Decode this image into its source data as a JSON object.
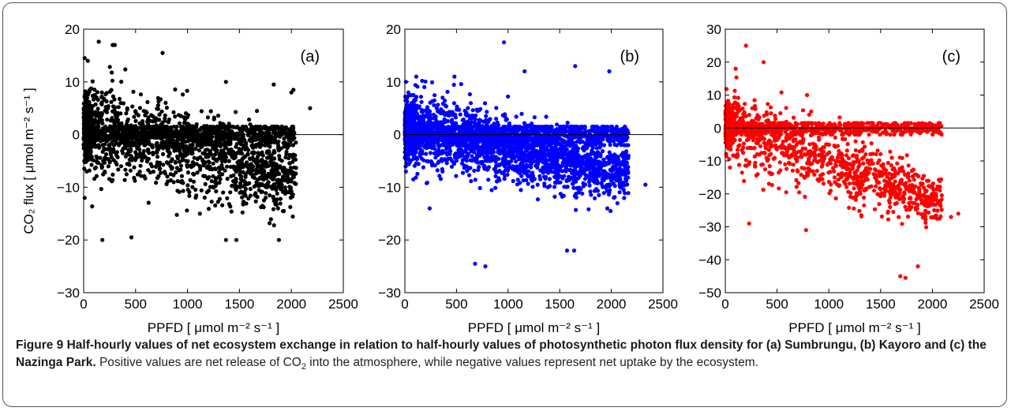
{
  "caption": {
    "label": "Figure 9",
    "title": "Half-hourly values of net ecosystem exchange in relation to half-hourly values of photosynthetic photon flux density for (a) Sumbrungu, (b) Kayoro and (c) the Nazinga Park.",
    "body_pre": "Positive values are net release of CO",
    "body_sub": "2",
    "body_post": " into the atmosphere, while negative values represent net uptake by the ecosystem."
  },
  "chart_data": [
    {
      "type": "scatter",
      "panel_label": "(a)",
      "title": "",
      "xlabel": "PPFD [ μmol m⁻² s⁻¹ ]",
      "ylabel": "CO₂ flux [ μmol m⁻² s⁻¹ ]",
      "xlim": [
        0,
        2500
      ],
      "ylim": [
        -30,
        20
      ],
      "xticks": [
        0,
        500,
        1000,
        1500,
        2000,
        2500
      ],
      "yticks": [
        -30,
        -20,
        -10,
        0,
        10,
        20
      ],
      "zero_line": true,
      "color": "#000000",
      "n_points_approx": 2500,
      "x_extent": [
        0,
        2200
      ],
      "trend": {
        "y_at_0": 2,
        "y_at_2000": -8,
        "spread_low": 14,
        "spread_high": 10
      },
      "outliers": [
        [
          10,
          14.5
        ],
        [
          40,
          14
        ],
        [
          280,
          17
        ],
        [
          300,
          17
        ],
        [
          760,
          15.5
        ],
        [
          1370,
          10
        ],
        [
          1830,
          9.5
        ],
        [
          2000,
          8
        ],
        [
          2020,
          8.5
        ],
        [
          2180,
          5
        ],
        [
          180,
          -20
        ],
        [
          460,
          -19.5
        ],
        [
          1370,
          -20
        ],
        [
          1470,
          -20
        ],
        [
          1880,
          -20
        ],
        [
          10,
          -12
        ],
        [
          30,
          -7
        ]
      ]
    },
    {
      "type": "scatter",
      "panel_label": "(b)",
      "title": "",
      "xlabel": "PPFD [ μmol m⁻² s⁻¹ ]",
      "ylabel": "",
      "xlim": [
        0,
        2500
      ],
      "ylim": [
        -30,
        20
      ],
      "xticks": [
        0,
        500,
        1000,
        1500,
        2000,
        2500
      ],
      "yticks": [
        -30,
        -20,
        -10,
        0,
        10,
        20
      ],
      "zero_line": true,
      "color": "#0000ff",
      "n_points_approx": 3500,
      "x_extent": [
        0,
        2330
      ],
      "trend": {
        "y_at_0": 1.5,
        "y_at_2000": -7,
        "spread_low": 11,
        "spread_high": 8
      },
      "outliers": [
        [
          10,
          10
        ],
        [
          110,
          11
        ],
        [
          480,
          11
        ],
        [
          960,
          17.5
        ],
        [
          1160,
          12
        ],
        [
          1650,
          13
        ],
        [
          1980,
          12
        ],
        [
          2330,
          -9.5
        ],
        [
          680,
          -24.5
        ],
        [
          780,
          -25
        ],
        [
          1570,
          -22
        ],
        [
          1640,
          -22
        ],
        [
          240,
          -14
        ],
        [
          10,
          -7
        ]
      ]
    },
    {
      "type": "scatter",
      "panel_label": "(c)",
      "title": "",
      "xlabel": "PPFD [ μmol m⁻² s⁻¹ ]",
      "ylabel": "",
      "xlim": [
        0,
        2500
      ],
      "ylim": [
        -50,
        30
      ],
      "xticks": [
        0,
        500,
        1000,
        1500,
        2000,
        2500
      ],
      "yticks": [
        -50,
        -40,
        -30,
        -20,
        -10,
        0,
        10,
        20,
        30
      ],
      "zero_line": true,
      "color": "#ff0000",
      "n_points_approx": 1800,
      "x_extent": [
        0,
        2250
      ],
      "trend": {
        "y_at_0": 1,
        "y_at_2000": -22,
        "spread_low": 18,
        "spread_high": 13
      },
      "outliers": [
        [
          200,
          25
        ],
        [
          370,
          20
        ],
        [
          100,
          18
        ],
        [
          790,
          10
        ],
        [
          1740,
          -45.5
        ],
        [
          1690,
          -45
        ],
        [
          1860,
          -42
        ],
        [
          230,
          -29
        ],
        [
          780,
          -31
        ],
        [
          2250,
          -26
        ],
        [
          2180,
          -27
        ]
      ]
    }
  ]
}
